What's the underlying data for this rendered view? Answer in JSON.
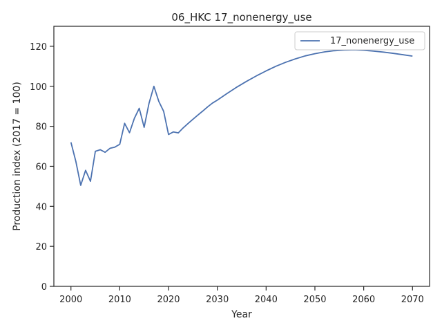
{
  "chart_data": {
    "type": "line",
    "title": "06_HKC 17_nonenergy_use",
    "xlabel": "Year",
    "ylabel": "Production index (2017 = 100)",
    "xlim": [
      1996.5,
      2073.5
    ],
    "ylim": [
      0,
      130
    ],
    "xticks": [
      2000,
      2010,
      2020,
      2030,
      2040,
      2050,
      2060,
      2070
    ],
    "yticks": [
      0,
      20,
      40,
      60,
      80,
      100,
      120
    ],
    "grid": false,
    "legend_position": "top-right",
    "series": [
      {
        "name": "17_nonenergy_use",
        "color": "#4c72b0",
        "x": [
          2000,
          2001,
          2002,
          2003,
          2004,
          2005,
          2006,
          2007,
          2008,
          2009,
          2010,
          2011,
          2012,
          2013,
          2014,
          2015,
          2016,
          2017,
          2018,
          2019,
          2020,
          2021,
          2022,
          2023,
          2024,
          2025,
          2026,
          2027,
          2028,
          2029,
          2030,
          2032,
          2034,
          2036,
          2038,
          2040,
          2042,
          2044,
          2046,
          2048,
          2050,
          2052,
          2054,
          2056,
          2058,
          2060,
          2062,
          2064,
          2066,
          2068,
          2070
        ],
        "y": [
          72,
          62.5,
          50.5,
          58,
          52.5,
          67.5,
          68.3,
          67,
          69,
          69.6,
          71,
          81.5,
          76.8,
          84,
          89,
          79.5,
          91.5,
          100,
          92.5,
          87.5,
          75.9,
          77.2,
          76.7,
          79.2,
          81.4,
          83.5,
          85.6,
          87.6,
          89.7,
          91.6,
          93.1,
          96.4,
          99.6,
          102.5,
          105.2,
          107.7,
          110,
          112,
          113.7,
          115.2,
          116.3,
          117.2,
          117.8,
          118.1,
          118.2,
          118,
          117.6,
          117.1,
          116.5,
          115.8,
          115.1
        ]
      }
    ]
  }
}
